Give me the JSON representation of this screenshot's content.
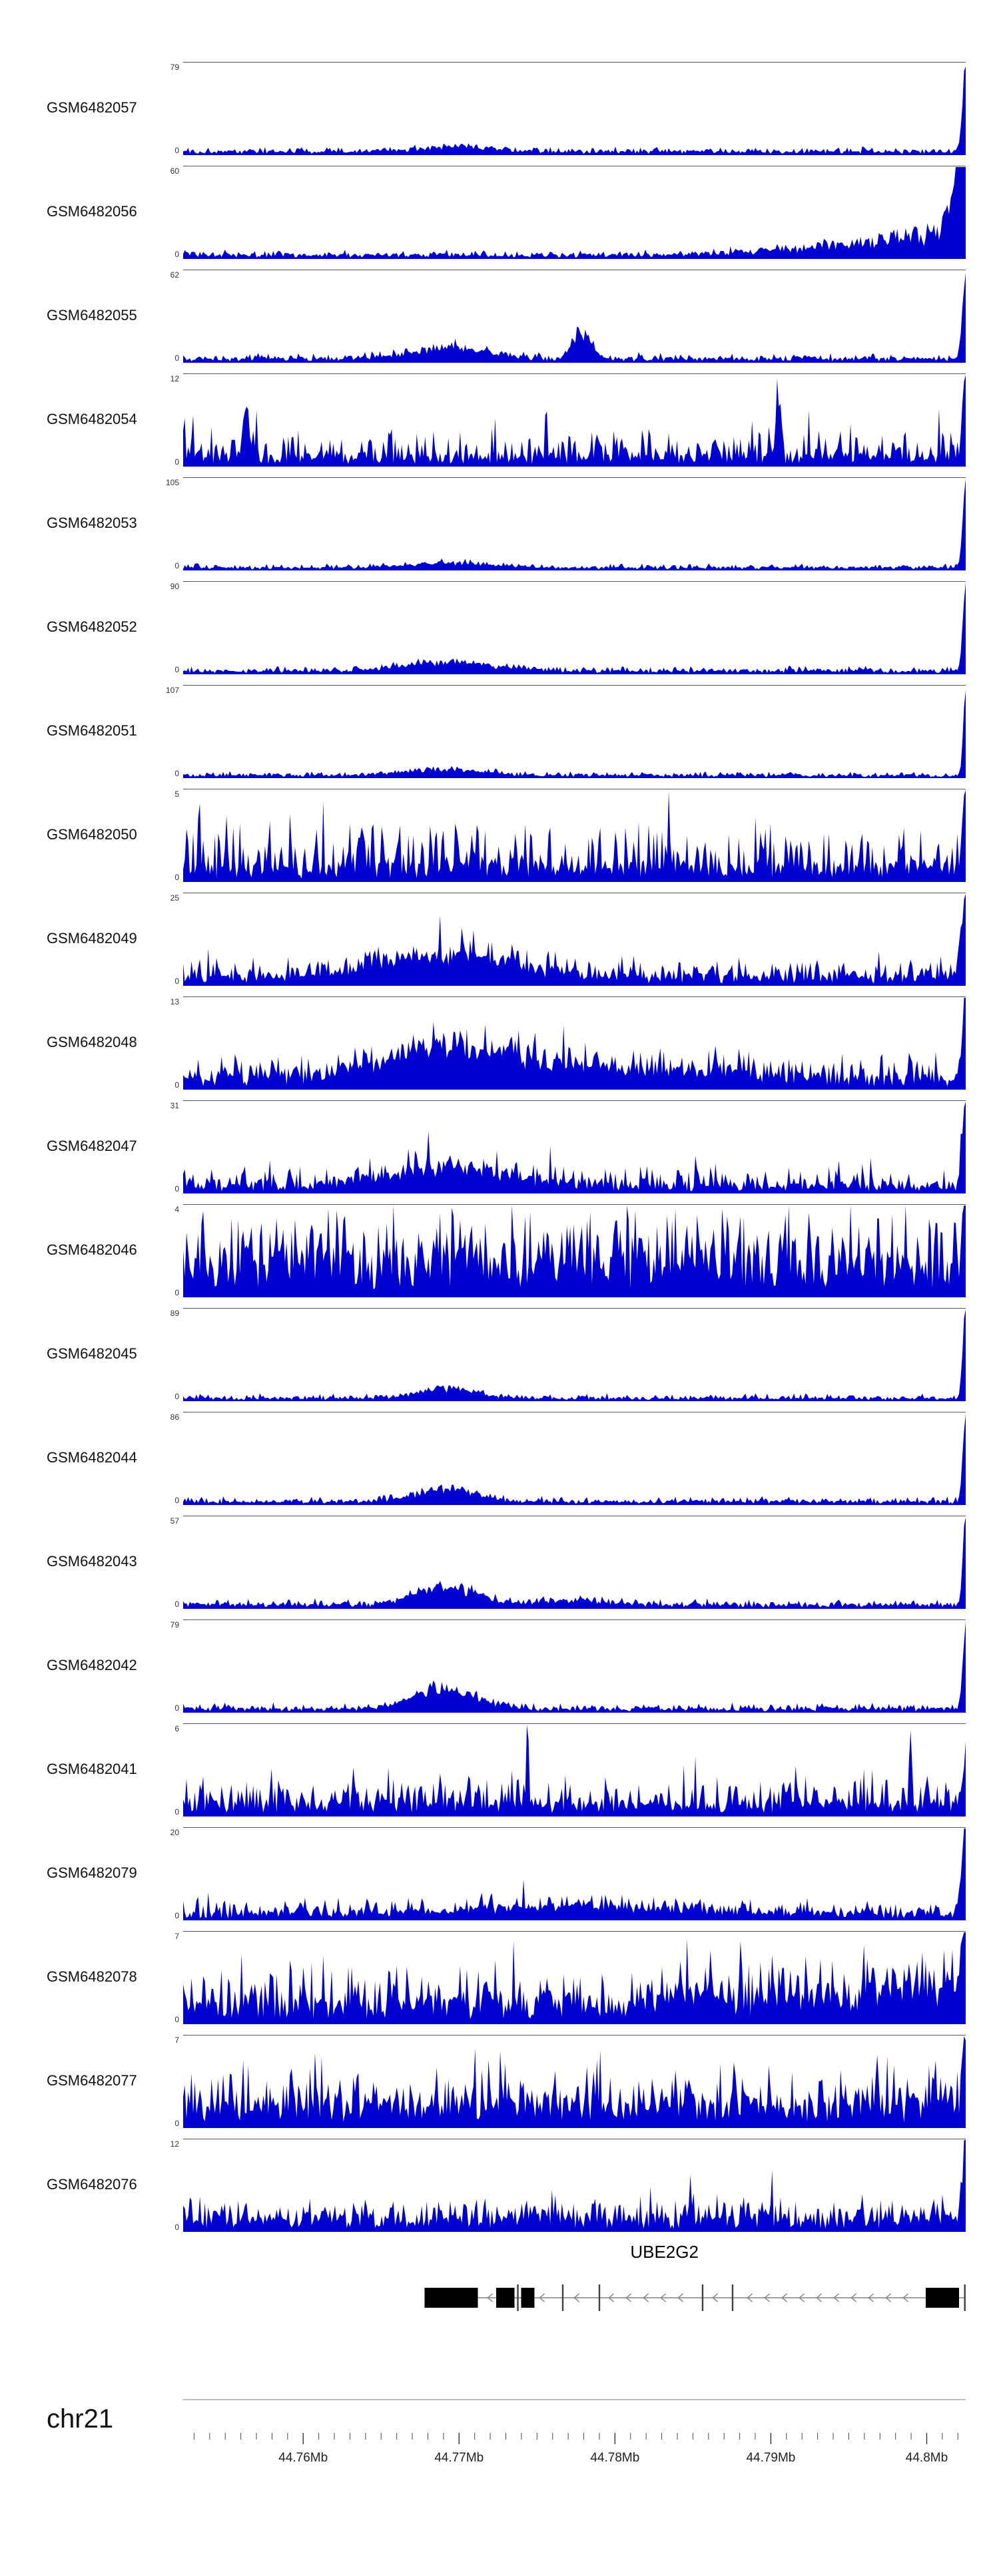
{
  "figure": {
    "background": "#ffffff",
    "chromosome_label": "chr21",
    "gene_label": "UBE2G2"
  },
  "chart_data": {
    "type": "area",
    "title": "",
    "description": "Stacked genome-browser read-coverage tracks (blue filled histograms) for 21 GEO samples over chr21 ~44.752-44.802 Mb spanning the UBE2G2 gene, with a gene model track and a genomic coordinate axis at the bottom.",
    "signal_color": "#0000D0",
    "frame_color": "#555555",
    "x_axis": {
      "chromosome": "chr21",
      "unit": "Mb",
      "range_mb": [
        44.7523,
        44.8025
      ],
      "major_ticks": [
        {
          "value": 44.76,
          "label": "44.76Mb"
        },
        {
          "value": 44.77,
          "label": "44.77Mb"
        },
        {
          "value": 44.78,
          "label": "44.78Mb"
        },
        {
          "value": 44.79,
          "label": "44.79Mb"
        },
        {
          "value": 44.8,
          "label": "44.8Mb"
        }
      ],
      "minor_tick_step_mb": 0.001
    },
    "tracks": [
      {
        "label": "GSM6482057",
        "ymin": 0,
        "ymax": 79,
        "profile": {
          "seed": 101,
          "base": 0.025,
          "noise": 0.05,
          "peaks": [
            {
              "pos": 0.35,
              "h": 0.06,
              "w": 0.05
            }
          ],
          "edge": {
            "h": 1,
            "w": 0.004
          }
        }
      },
      {
        "label": "GSM6482056",
        "ymin": 0,
        "ymax": 60,
        "profile": {
          "seed": 102,
          "base": 0.03,
          "noise": 0.05,
          "ramp": {
            "from": 0.55,
            "h": 0.3
          },
          "edge": {
            "h": 1,
            "w": 0.014
          }
        }
      },
      {
        "label": "GSM6482055",
        "ymin": 0,
        "ymax": 62,
        "profile": {
          "seed": 103,
          "base": 0.03,
          "noise": 0.06,
          "peaks": [
            {
              "pos": 0.34,
              "h": 0.12,
              "w": 0.05
            },
            {
              "pos": 0.51,
              "h": 0.3,
              "w": 0.012
            }
          ],
          "edge": {
            "h": 1,
            "w": 0.004
          }
        }
      },
      {
        "label": "GSM6482054",
        "ymin": 0,
        "ymax": 12,
        "profile": {
          "seed": 104,
          "base": 0.08,
          "noise": 0.28,
          "spikeProb": 0.05,
          "spikeH": 0.5,
          "peaks": [
            {
              "pos": 0.08,
              "h": 0.55,
              "w": 0.004
            },
            {
              "pos": 0.76,
              "h": 0.6,
              "w": 0.003
            }
          ],
          "edge": {
            "h": 0.95,
            "w": 0.004
          }
        }
      },
      {
        "label": "GSM6482053",
        "ymin": 0,
        "ymax": 105,
        "profile": {
          "seed": 105,
          "base": 0.02,
          "noise": 0.04,
          "peaks": [
            {
              "pos": 0.34,
              "h": 0.05,
              "w": 0.05
            }
          ],
          "edge": {
            "h": 1,
            "w": 0.0035
          }
        }
      },
      {
        "label": "GSM6482052",
        "ymin": 0,
        "ymax": 90,
        "profile": {
          "seed": 106,
          "base": 0.025,
          "noise": 0.05,
          "peaks": [
            {
              "pos": 0.34,
              "h": 0.09,
              "w": 0.06
            }
          ],
          "edge": {
            "h": 1,
            "w": 0.0035
          }
        }
      },
      {
        "label": "GSM6482051",
        "ymin": 0,
        "ymax": 107,
        "profile": {
          "seed": 107,
          "base": 0.02,
          "noise": 0.04,
          "peaks": [
            {
              "pos": 0.33,
              "h": 0.06,
              "w": 0.05
            }
          ],
          "edge": {
            "h": 1,
            "w": 0.003
          }
        }
      },
      {
        "label": "GSM6482050",
        "ymin": 0,
        "ymax": 5,
        "profile": {
          "seed": 108,
          "base": 0.12,
          "noise": 0.45,
          "spikeProb": 0.1,
          "spikeH": 0.5,
          "edge": {
            "h": 0.75,
            "w": 0.004
          }
        }
      },
      {
        "label": "GSM6482049",
        "ymin": 0,
        "ymax": 25,
        "profile": {
          "seed": 109,
          "base": 0.07,
          "noise": 0.22,
          "spikeProb": 0.04,
          "spikeH": 0.3,
          "peaks": [
            {
              "pos": 0.34,
              "h": 0.25,
              "w": 0.08
            }
          ],
          "edge": {
            "h": 0.85,
            "w": 0.005
          }
        }
      },
      {
        "label": "GSM6482048",
        "ymin": 0,
        "ymax": 13,
        "profile": {
          "seed": 110,
          "base": 0.09,
          "noise": 0.25,
          "spikeProb": 0.04,
          "spikeH": 0.3,
          "peaks": [
            {
              "pos": 0.35,
              "h": 0.33,
              "w": 0.09
            },
            {
              "pos": 0.6,
              "h": 0.1,
              "w": 0.1
            }
          ],
          "edge": {
            "h": 1,
            "w": 0.004
          }
        }
      },
      {
        "label": "GSM6482047",
        "ymin": 0,
        "ymax": 31,
        "profile": {
          "seed": 111,
          "base": 0.06,
          "noise": 0.2,
          "spikeProb": 0.03,
          "spikeH": 0.3,
          "peaks": [
            {
              "pos": 0.34,
              "h": 0.2,
              "w": 0.08
            }
          ],
          "edge": {
            "h": 1,
            "w": 0.004
          }
        }
      },
      {
        "label": "GSM6482046",
        "ymin": 0,
        "ymax": 4,
        "profile": {
          "seed": 112,
          "base": 0.3,
          "noise": 0.55,
          "spikeProb": 0.15,
          "spikeH": 0.4,
          "edge": {
            "h": 0.9,
            "w": 0.004
          }
        }
      },
      {
        "label": "GSM6482045",
        "ymin": 0,
        "ymax": 89,
        "profile": {
          "seed": 113,
          "base": 0.02,
          "noise": 0.05,
          "peaks": [
            {
              "pos": 0.335,
              "h": 0.11,
              "w": 0.035
            }
          ],
          "edge": {
            "h": 1,
            "w": 0.0035
          }
        }
      },
      {
        "label": "GSM6482044",
        "ymin": 0,
        "ymax": 86,
        "profile": {
          "seed": 114,
          "base": 0.025,
          "noise": 0.05,
          "peaks": [
            {
              "pos": 0.335,
              "h": 0.14,
              "w": 0.04
            }
          ],
          "edge": {
            "h": 1,
            "w": 0.0035
          }
        }
      },
      {
        "label": "GSM6482043",
        "ymin": 0,
        "ymax": 57,
        "profile": {
          "seed": 115,
          "base": 0.03,
          "noise": 0.06,
          "peaks": [
            {
              "pos": 0.335,
              "h": 0.19,
              "w": 0.04
            },
            {
              "pos": 0.5,
              "h": 0.05,
              "w": 0.04
            }
          ],
          "edge": {
            "h": 1,
            "w": 0.0035
          }
        }
      },
      {
        "label": "GSM6482042",
        "ymin": 0,
        "ymax": 79,
        "profile": {
          "seed": 116,
          "base": 0.03,
          "noise": 0.06,
          "peaks": [
            {
              "pos": 0.335,
              "h": 0.21,
              "w": 0.04
            }
          ],
          "edge": {
            "h": 1,
            "w": 0.0035
          }
        }
      },
      {
        "label": "GSM6482041",
        "ymin": 0,
        "ymax": 6,
        "profile": {
          "seed": 117,
          "base": 0.1,
          "noise": 0.3,
          "spikeProb": 0.05,
          "spikeH": 0.4,
          "peaks": [
            {
              "pos": 0.44,
              "h": 0.95,
              "w": 0.0015
            },
            {
              "pos": 0.93,
              "h": 0.8,
              "w": 0.0015
            }
          ],
          "edge": {
            "h": 0.5,
            "w": 0.004
          }
        }
      },
      {
        "label": "GSM6482079",
        "ymin": 0,
        "ymax": 20,
        "profile": {
          "seed": 118,
          "base": 0.05,
          "noise": 0.15,
          "spikeProb": 0.02,
          "spikeH": 0.2,
          "peaks": [
            {
              "pos": 0.5,
              "h": 0.08,
              "w": 0.15
            }
          ],
          "edge": {
            "h": 1,
            "w": 0.005
          }
        }
      },
      {
        "label": "GSM6482078",
        "ymin": 0,
        "ymax": 7,
        "profile": {
          "seed": 119,
          "base": 0.18,
          "noise": 0.4,
          "spikeProb": 0.06,
          "spikeH": 0.4,
          "ramp": {
            "from": 0.3,
            "h": 0.15
          },
          "edge": {
            "h": 0.85,
            "w": 0.005
          }
        }
      },
      {
        "label": "GSM6482077",
        "ymin": 0,
        "ymax": 7,
        "profile": {
          "seed": 120,
          "base": 0.2,
          "noise": 0.42,
          "spikeProb": 0.06,
          "spikeH": 0.4,
          "edge": {
            "h": 0.9,
            "w": 0.004
          }
        }
      },
      {
        "label": "GSM6482076",
        "ymin": 0,
        "ymax": 12,
        "profile": {
          "seed": 121,
          "base": 0.1,
          "noise": 0.28,
          "spikeProb": 0.04,
          "spikeH": 0.35,
          "edge": {
            "h": 1,
            "w": 0.003
          }
        }
      }
    ],
    "gene_track": {
      "gene": "UBE2G2",
      "strand": "-",
      "line_start": 0.3085,
      "line_end": 0.9989,
      "label_x": 0.615,
      "exons": [
        {
          "start": 0.3085,
          "end": 0.3766
        },
        {
          "start": 0.4,
          "end": 0.4234
        },
        {
          "start": 0.4319,
          "end": 0.4489
        },
        {
          "start": 0.9489,
          "end": 0.9915
        }
      ],
      "thin_marks": [
        0.4277,
        0.4851,
        0.5319,
        0.6638,
        0.7021,
        0.9989
      ]
    }
  }
}
